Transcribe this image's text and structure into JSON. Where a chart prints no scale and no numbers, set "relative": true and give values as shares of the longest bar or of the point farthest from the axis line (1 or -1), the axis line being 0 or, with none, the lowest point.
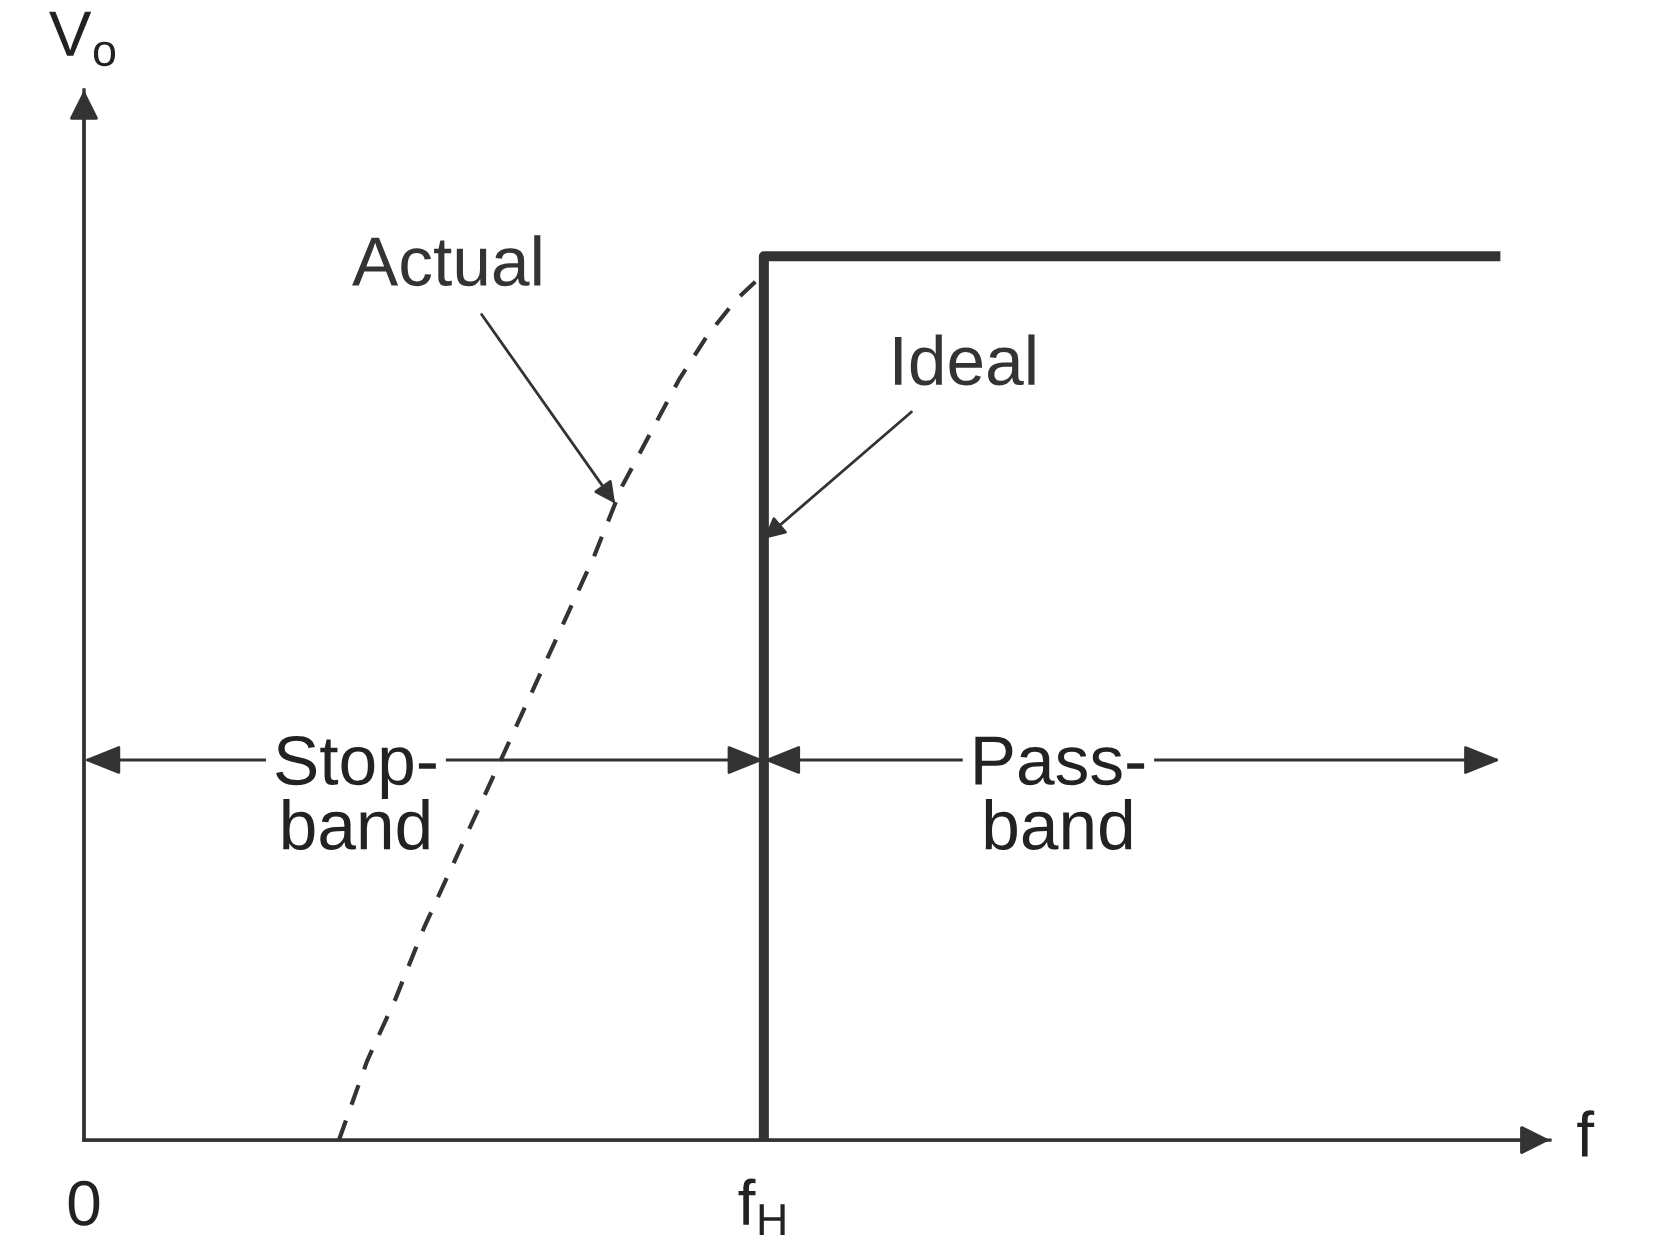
{
  "chart_data": {
    "type": "line",
    "relative": true,
    "xlabel": "f",
    "ylabel": "V$_{o}$",
    "tick_labels": "x",
    "categories": [
      "0",
      null,
      null,
      null,
      null,
      null,
      null,
      null,
      null,
      null,
      null,
      null,
      null,
      null,
      null,
      null,
      null,
      null,
      null,
      null,
      null,
      null,
      null,
      null,
      "f$_{H}$",
      null,
      null,
      null,
      null,
      null,
      null,
      null,
      null,
      null,
      null,
      null,
      null,
      null,
      null,
      null,
      null,
      null,
      null,
      null,
      null,
      null,
      null,
      null,
      null,
      null,
      null
    ],
    "series": [
      {
        "name": "Actual",
        "color": "#333333",
        "line_style": "dashed",
        "values": [
          null,
          null,
          null,
          null,
          null,
          null,
          null,
          null,
          null,
          0,
          0.09,
          0.16,
          0.24,
          0.31,
          0.38,
          0.45,
          0.52,
          0.59,
          0.66,
          0.74,
          0.8,
          0.86,
          0.91,
          0.95,
          0.98,
          null,
          null,
          null,
          null,
          null,
          null,
          null,
          null,
          null,
          null,
          null,
          null,
          null,
          null,
          null,
          null,
          null,
          null,
          null,
          null,
          null,
          null,
          null,
          null,
          null,
          null
        ]
      },
      {
        "name": "Ideal",
        "type": "step",
        "color": "#333333",
        "line_style": "solid",
        "values": [
          null,
          null,
          null,
          null,
          null,
          null,
          null,
          null,
          null,
          null,
          null,
          null,
          null,
          null,
          null,
          null,
          null,
          null,
          null,
          null,
          null,
          null,
          null,
          null,
          0,
          1,
          1,
          1,
          1,
          1,
          1,
          1,
          1,
          1,
          1,
          1,
          1,
          1,
          1,
          1,
          1,
          1,
          1,
          1,
          1,
          1,
          1,
          1,
          1,
          1,
          1
        ]
      }
    ],
    "annotations": [
      "Stop-\nband",
      "Pass-\nband"
    ]
  }
}
